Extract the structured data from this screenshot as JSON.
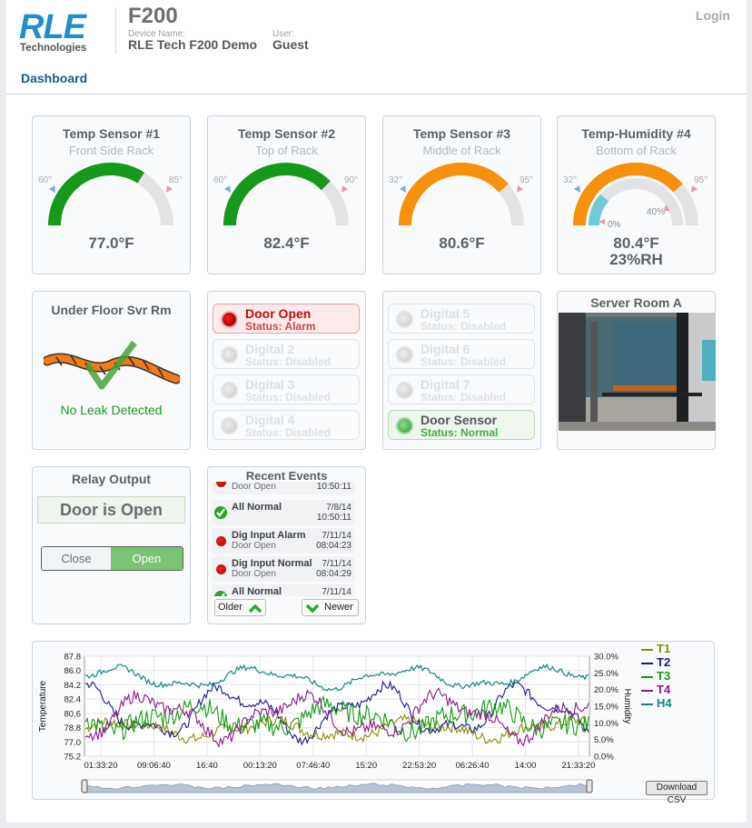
{
  "header": {
    "model": "F200",
    "device_name_label": "Device Name:",
    "device_name": "RLE Tech F200 Demo",
    "user_label": "User:",
    "user": "Guest",
    "login": "Login",
    "logo_text_1": "RLE",
    "logo_text_2": "Technologies"
  },
  "tabs": {
    "dashboard": "Dashboard"
  },
  "gauges": [
    {
      "title": "Temp Sensor #1",
      "subtitle": "Front Side Rack",
      "low": "60°",
      "high": "85°",
      "reading": "77.0°F",
      "fraction": 0.68,
      "color": "#16981a"
    },
    {
      "title": "Temp Sensor #2",
      "subtitle": "Top of Rack",
      "low": "60°",
      "high": "90°",
      "reading": "82.4°F",
      "fraction": 0.75,
      "color": "#16981a"
    },
    {
      "title": "Temp Sensor #3",
      "subtitle": "Middle of Rack",
      "low": "32°",
      "high": "95°",
      "reading": "80.6°F",
      "fraction": 0.77,
      "color": "#f7900d"
    },
    {
      "title": "Temp-Humidity #4",
      "subtitle": "Bottom of Rack",
      "low": "32°",
      "high": "95°",
      "reading": "80.4°F",
      "reading2": "23%RH",
      "fraction": 0.77,
      "humidity_fraction": 0.23,
      "hum_low": "0%",
      "hum_high": "40%",
      "color": "#f7900d",
      "hum_color": "#6ccbd4"
    }
  ],
  "leak": {
    "title": "Under Floor Svr Rm",
    "status": "No Leak Detected"
  },
  "digital_left": [
    {
      "name": "Door Open",
      "status": "Status: Alarm",
      "state": "alarm"
    },
    {
      "name": "Digital 2",
      "status": "Status: Disabled",
      "state": "disabled"
    },
    {
      "name": "Digital 3",
      "status": "Status: Disabled",
      "state": "disabled"
    },
    {
      "name": "Digital 4",
      "status": "Status: Disabled",
      "state": "disabled"
    }
  ],
  "digital_right": [
    {
      "name": "Digital 5",
      "status": "Status: Disabled",
      "state": "disabled"
    },
    {
      "name": "Digital 6",
      "status": "Status: Disabled",
      "state": "disabled"
    },
    {
      "name": "Digital 7",
      "status": "Status: Disabled",
      "state": "disabled"
    },
    {
      "name": "Door Sensor",
      "status": "Status: Normal",
      "state": "normal"
    }
  ],
  "camera": {
    "title": "Server Room A"
  },
  "relay": {
    "title": "Relay Output",
    "status": "Door is Open",
    "close_label": "Close",
    "open_label": "Open"
  },
  "events": {
    "title": "Recent Events",
    "items": [
      {
        "name": "",
        "sub": "Door Open",
        "date": "",
        "time": "10:50:11",
        "type": "alarm"
      },
      {
        "name": "All Normal",
        "sub": "",
        "date": "7/8/14",
        "time": "10:50:11",
        "type": "ok"
      },
      {
        "name": "Dig Input Alarm",
        "sub": "Door Open",
        "date": "7/11/14",
        "time": "08:04:23",
        "type": "alarm"
      },
      {
        "name": "Dig Input Normal",
        "sub": "Door Open",
        "date": "7/11/14",
        "time": "08:04:29",
        "type": "alarm"
      },
      {
        "name": "All Normal",
        "sub": "",
        "date": "7/11/14",
        "time": "",
        "type": "ok"
      }
    ],
    "older_label": "Older",
    "newer_label": "Newer"
  },
  "chart": {
    "download_label": "Download CSV"
  },
  "chart_data": {
    "type": "line",
    "ylabel": "Temperature",
    "y2label": "Humidity",
    "y_ticks": [
      "87.8",
      "86.0",
      "84.2",
      "82.4",
      "80.6",
      "78.8",
      "77.0",
      "75.2"
    ],
    "y_range": [
      75.2,
      87.8
    ],
    "y2_ticks": [
      "30.0%",
      "25.0%",
      "20.0%",
      "15.0%",
      "10.0%",
      "5.0%",
      "0.0%"
    ],
    "y2_range": [
      0,
      30
    ],
    "x_ticks": [
      "01:33:20",
      "09:06:40",
      "16:40",
      "00:13:20",
      "07:46:40",
      "15:20",
      "22:53:20",
      "06:26:40",
      "14:00",
      "21:33:20"
    ],
    "grid": true,
    "legend_position": "right",
    "series": [
      {
        "name": "T1",
        "color": "#8b8b00",
        "axis": "left",
        "base": 78.6,
        "amp": 0.9,
        "noise": 0.7
      },
      {
        "name": "T2",
        "color": "#1a1a8c",
        "axis": "left",
        "base": 80.8,
        "amp": 2.6,
        "noise": 0.6
      },
      {
        "name": "T3",
        "color": "#139c13",
        "axis": "left",
        "base": 80.0,
        "amp": 1.3,
        "noise": 1.3
      },
      {
        "name": "T4",
        "color": "#8c1a8c",
        "axis": "left",
        "base": 80.2,
        "amp": 2.2,
        "noise": 0.8
      },
      {
        "name": "H4",
        "color": "#138585",
        "axis": "right",
        "base": 23.5,
        "amp": 2.5,
        "noise": 0.8
      }
    ]
  }
}
